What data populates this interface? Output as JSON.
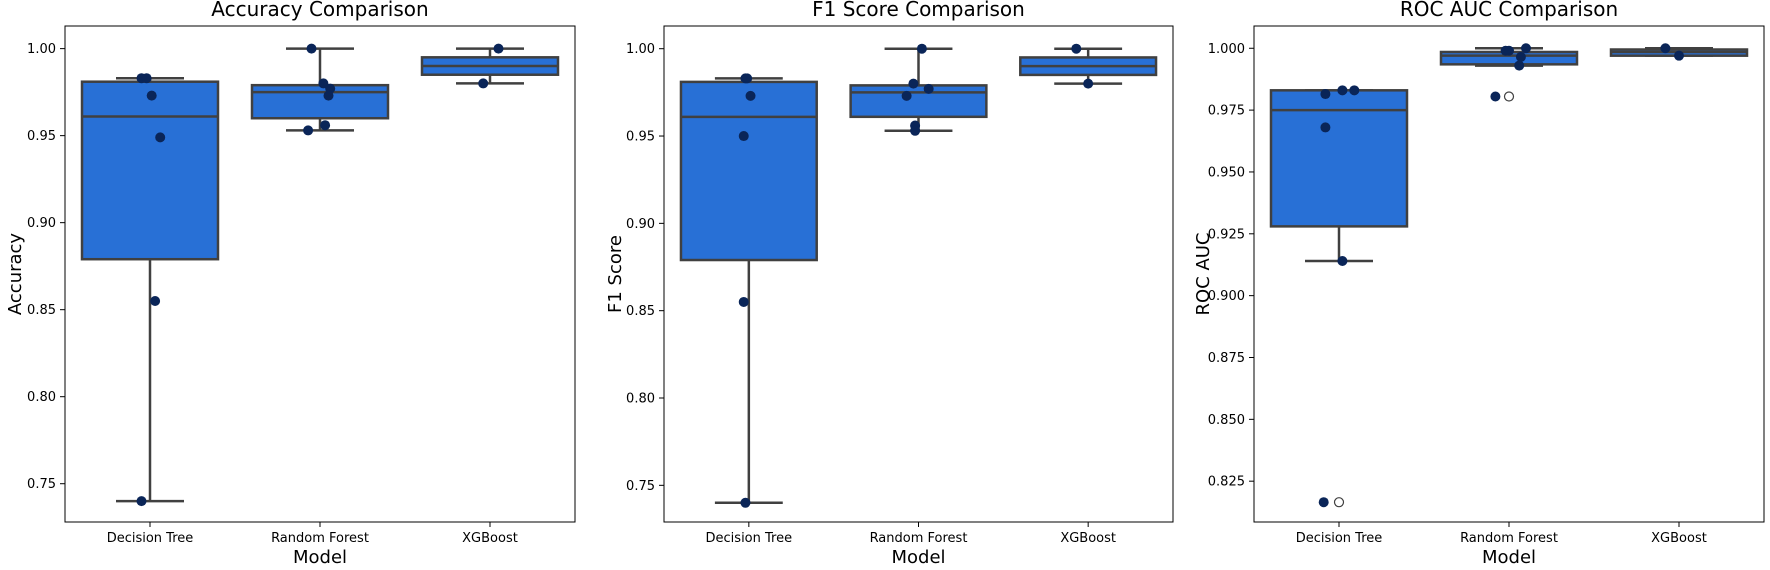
{
  "chart_data": [
    {
      "type": "box",
      "title": "Accuracy Comparison",
      "xlabel": "Model",
      "ylabel": "Accuracy",
      "ylim": [
        0.728,
        1.013
      ],
      "ytick_values": [
        0.75,
        0.8,
        0.85,
        0.9,
        0.95,
        1.0
      ],
      "ytick_labels": [
        "0.75",
        "0.80",
        "0.85",
        "0.90",
        "0.95",
        "1.00"
      ],
      "categories": [
        "Decision Tree",
        "Random Forest",
        "XGBoost"
      ],
      "boxes": [
        {
          "q1": 0.879,
          "median": 0.961,
          "q3": 0.981,
          "whisker_low": 0.74,
          "whisker_high": 0.983,
          "outliers": []
        },
        {
          "q1": 0.96,
          "median": 0.975,
          "q3": 0.979,
          "whisker_low": 0.953,
          "whisker_high": 1.0,
          "outliers": []
        },
        {
          "q1": 0.985,
          "median": 0.99,
          "q3": 0.995,
          "whisker_low": 0.98,
          "whisker_high": 1.0,
          "outliers": []
        }
      ],
      "points": [
        [
          {
            "offset": -0.05,
            "y": 0.983
          },
          {
            "offset": -0.02,
            "y": 0.983
          },
          {
            "offset": 0.01,
            "y": 0.973
          },
          {
            "offset": 0.06,
            "y": 0.949
          },
          {
            "offset": 0.03,
            "y": 0.855
          },
          {
            "offset": -0.05,
            "y": 0.74
          }
        ],
        [
          {
            "offset": -0.05,
            "y": 1.0
          },
          {
            "offset": 0.02,
            "y": 0.98
          },
          {
            "offset": 0.06,
            "y": 0.977
          },
          {
            "offset": 0.05,
            "y": 0.973
          },
          {
            "offset": 0.03,
            "y": 0.956
          },
          {
            "offset": -0.07,
            "y": 0.953
          }
        ],
        [
          {
            "offset": 0.05,
            "y": 1.0
          },
          {
            "offset": -0.04,
            "y": 0.98
          }
        ]
      ],
      "colors": {
        "box": "#2870d6",
        "edge": "#404040",
        "point": "#0a2558"
      }
    },
    {
      "type": "box",
      "title": "F1 Score Comparison",
      "xlabel": "Model",
      "ylabel": "F1 Score",
      "ylim": [
        0.729,
        1.013
      ],
      "ytick_values": [
        0.75,
        0.8,
        0.85,
        0.9,
        0.95,
        1.0
      ],
      "ytick_labels": [
        "0.75",
        "0.80",
        "0.85",
        "0.90",
        "0.95",
        "1.00"
      ],
      "categories": [
        "Decision Tree",
        "Random Forest",
        "XGBoost"
      ],
      "boxes": [
        {
          "q1": 0.879,
          "median": 0.961,
          "q3": 0.981,
          "whisker_low": 0.74,
          "whisker_high": 0.983,
          "outliers": []
        },
        {
          "q1": 0.961,
          "median": 0.975,
          "q3": 0.979,
          "whisker_low": 0.953,
          "whisker_high": 1.0,
          "outliers": []
        },
        {
          "q1": 0.985,
          "median": 0.99,
          "q3": 0.995,
          "whisker_low": 0.98,
          "whisker_high": 1.0,
          "outliers": []
        }
      ],
      "points": [
        [
          {
            "offset": -0.02,
            "y": 0.983
          },
          {
            "offset": -0.01,
            "y": 0.983
          },
          {
            "offset": 0.01,
            "y": 0.973
          },
          {
            "offset": -0.03,
            "y": 0.95
          },
          {
            "offset": -0.03,
            "y": 0.855
          },
          {
            "offset": -0.02,
            "y": 0.74
          }
        ],
        [
          {
            "offset": 0.02,
            "y": 1.0
          },
          {
            "offset": -0.03,
            "y": 0.98
          },
          {
            "offset": 0.06,
            "y": 0.977
          },
          {
            "offset": -0.07,
            "y": 0.973
          },
          {
            "offset": -0.02,
            "y": 0.956
          },
          {
            "offset": -0.02,
            "y": 0.953
          }
        ],
        [
          {
            "offset": -0.07,
            "y": 1.0
          },
          {
            "offset": 0.0,
            "y": 0.98
          }
        ]
      ],
      "colors": {
        "box": "#2870d6",
        "edge": "#404040",
        "point": "#0a2558"
      }
    },
    {
      "type": "box",
      "title": "ROC AUC Comparison",
      "xlabel": "Model",
      "ylabel": "ROC AUC",
      "ylim": [
        0.8085,
        1.009
      ],
      "ytick_values": [
        0.825,
        0.85,
        0.875,
        0.9,
        0.925,
        0.95,
        0.975,
        1.0
      ],
      "ytick_labels": [
        "0.825",
        "0.850",
        "0.875",
        "0.900",
        "0.925",
        "0.950",
        "0.975",
        "1.000"
      ],
      "categories": [
        "Decision Tree",
        "Random Forest",
        "XGBoost"
      ],
      "boxes": [
        {
          "q1": 0.928,
          "median": 0.975,
          "q3": 0.983,
          "whisker_low": 0.914,
          "whisker_high": 0.983,
          "outliers": [
            0.8165
          ]
        },
        {
          "q1": 0.9935,
          "median": 0.997,
          "q3": 0.9985,
          "whisker_low": 0.993,
          "whisker_high": 1.0,
          "outliers": [
            0.9805
          ]
        },
        {
          "q1": 0.997,
          "median": 0.9985,
          "q3": 0.9995,
          "whisker_low": 0.997,
          "whisker_high": 1.0,
          "outliers": []
        }
      ],
      "points": [
        [
          {
            "offset": -0.09,
            "y": 0.8165
          },
          {
            "offset": -0.08,
            "y": 0.9815
          },
          {
            "offset": 0.02,
            "y": 0.983
          },
          {
            "offset": 0.09,
            "y": 0.983
          },
          {
            "offset": -0.08,
            "y": 0.968
          },
          {
            "offset": 0.02,
            "y": 0.914
          }
        ],
        [
          {
            "offset": -0.08,
            "y": 0.9805
          },
          {
            "offset": -0.02,
            "y": 0.999
          },
          {
            "offset": 0.0,
            "y": 0.999
          },
          {
            "offset": 0.1,
            "y": 1.0
          },
          {
            "offset": 0.07,
            "y": 0.9965
          },
          {
            "offset": 0.06,
            "y": 0.993
          }
        ],
        [
          {
            "offset": -0.08,
            "y": 1.0
          },
          {
            "offset": 0.0,
            "y": 0.997
          }
        ]
      ],
      "colors": {
        "box": "#2870d6",
        "edge": "#404040",
        "point": "#0a2558"
      }
    }
  ]
}
